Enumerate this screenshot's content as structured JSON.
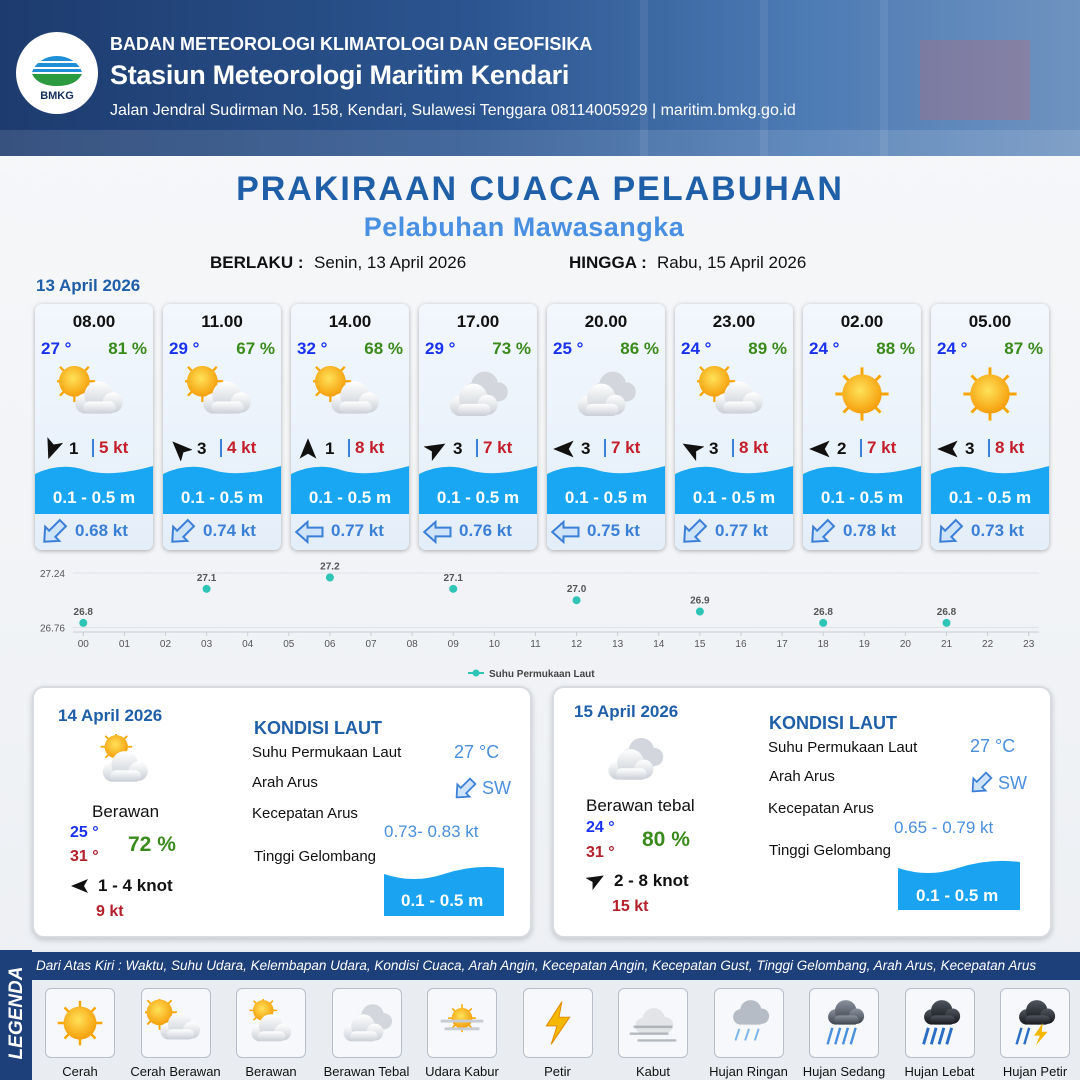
{
  "header": {
    "logo": "BMKG",
    "agency": "BADAN METEOROLOGI KLIMATOLOGI DAN GEOFISIKA",
    "station": "Stasiun Meteorologi Maritim Kendari",
    "address": "Jalan Jendral Sudirman No. 158, Kendari, Sulawesi Tenggara  08114005929 | maritim.bmkg.go.id"
  },
  "title": "PRAKIRAAN CUACA PELABUHAN",
  "subtitle": "Pelabuhan Mawasangka",
  "validity": {
    "from_label": "BERLAKU :",
    "from": "Senin, 13 April 2026",
    "to_label": "HINGGA :",
    "to": "Rabu, 15 April 2026"
  },
  "date": "13 April 2026",
  "forecasts": [
    {
      "time": "08.00",
      "temp": "27 °",
      "humidity": "81 %",
      "wind": "1",
      "gust": "5 kt",
      "wave": "0.1 - 0.5 m",
      "current": "0.68 kt"
    },
    {
      "time": "11.00",
      "temp": "29 °",
      "humidity": "67 %",
      "wind": "3",
      "gust": "4 kt",
      "wave": "0.1 - 0.5 m",
      "current": "0.74 kt"
    },
    {
      "time": "14.00",
      "temp": "32 °",
      "humidity": "68 %",
      "wind": "1",
      "gust": "8 kt",
      "wave": "0.1 - 0.5 m",
      "current": "0.77 kt"
    },
    {
      "time": "17.00",
      "temp": "29 °",
      "humidity": "73 %",
      "wind": "3",
      "gust": "7 kt",
      "wave": "0.1 - 0.5 m",
      "current": "0.76 kt"
    },
    {
      "time": "20.00",
      "temp": "25 °",
      "humidity": "86 %",
      "wind": "3",
      "gust": "7 kt",
      "wave": "0.1 - 0.5 m",
      "current": "0.75 kt"
    },
    {
      "time": "23.00",
      "temp": "24 °",
      "humidity": "89 %",
      "wind": "3",
      "gust": "8 kt",
      "wave": "0.1 - 0.5 m",
      "current": "0.77 kt"
    },
    {
      "time": "02.00",
      "temp": "24 °",
      "humidity": "88 %",
      "wind": "2",
      "gust": "7 kt",
      "wave": "0.1 - 0.5 m",
      "current": "0.78 kt"
    },
    {
      "time": "05.00",
      "temp": "24 °",
      "humidity": "87 %",
      "wind": "3",
      "gust": "8 kt",
      "wave": "0.1 - 0.5 m",
      "current": "0.73 kt"
    }
  ],
  "chart_data": {
    "type": "scatter",
    "x": [
      0,
      3,
      6,
      9,
      12,
      15,
      18,
      21
    ],
    "values": [
      26.8,
      27.1,
      27.2,
      27.1,
      27.0,
      26.9,
      26.8,
      26.8
    ],
    "value_labels": [
      "26.8",
      "27.1",
      "27.2",
      "27.1",
      "27.0",
      "26.9",
      "26.8",
      "26.8"
    ],
    "series_name": "Suhu Permukaan Laut",
    "color": "#2ec4b6",
    "xlim": [
      -0.25,
      23.25
    ],
    "ylim": [
      26.72,
      27.31
    ],
    "xticks": [
      {
        "value": 0,
        "label": "00"
      },
      {
        "value": 1,
        "label": "01"
      },
      {
        "value": 2,
        "label": "02"
      },
      {
        "value": 3,
        "label": "03"
      },
      {
        "value": 4,
        "label": "04"
      },
      {
        "value": 5,
        "label": "05"
      },
      {
        "value": 6,
        "label": "06"
      },
      {
        "value": 7,
        "label": "07"
      },
      {
        "value": 8,
        "label": "08"
      },
      {
        "value": 9,
        "label": "09"
      },
      10,
      11,
      12,
      13,
      14,
      15,
      16,
      17,
      18,
      19,
      20,
      21,
      22,
      23
    ],
    "yticks": [
      26.76,
      27.24
    ],
    "grid": true,
    "legend": "bottom"
  },
  "days": [
    {
      "date": "14 April 2026",
      "condition": "Berawan",
      "temp_min": "25 °",
      "temp_max": "31 °",
      "humidity": "72 %",
      "wind": "1 - 4 knot",
      "gust": "9 kt",
      "sea_title": "KONDISI LAUT",
      "sst_label": "Suhu Permukaan Laut",
      "sst": "27 °C",
      "dir_label": "Arah Arus",
      "dir": "SW",
      "speed_label": "Kecepatan Arus",
      "speed": "0.73- 0.83 kt",
      "wave_label": "Tinggi Gelombang",
      "wave": "0.1 - 0.5 m"
    },
    {
      "date": "15 April 2026",
      "condition": "Berawan tebal",
      "temp_min": "24 °",
      "temp_max": "31 °",
      "humidity": "80 %",
      "wind": "2 - 8 knot",
      "gust": "15 kt",
      "sea_title": "KONDISI LAUT",
      "sst_label": "Suhu Permukaan Laut",
      "sst": "27 °C",
      "dir_label": "Arah Arus",
      "dir": "SW",
      "speed_label": "Kecepatan Arus",
      "speed": "0.65 - 0.79 kt",
      "wave_label": "Tinggi Gelombang",
      "wave": "0.1 - 0.5 m"
    }
  ],
  "legend": {
    "title": "LEGENDA",
    "description": "Dari Atas Kiri : Waktu, Suhu Udara, Kelembapan Udara, Kondisi Cuaca, Arah Angin, Kecepatan Angin, Kecepatan Gust, Tinggi Gelombang, Arah Arus, Kecepatan Arus",
    "items": [
      "Cerah",
      "Cerah Berawan",
      "Berawan",
      "Berawan Tebal",
      "Udara Kabur",
      "Petir",
      "Kabut",
      "Hujan Ringan",
      "Hujan Sedang",
      "Hujan Lebat",
      "Hujan Petir"
    ]
  }
}
